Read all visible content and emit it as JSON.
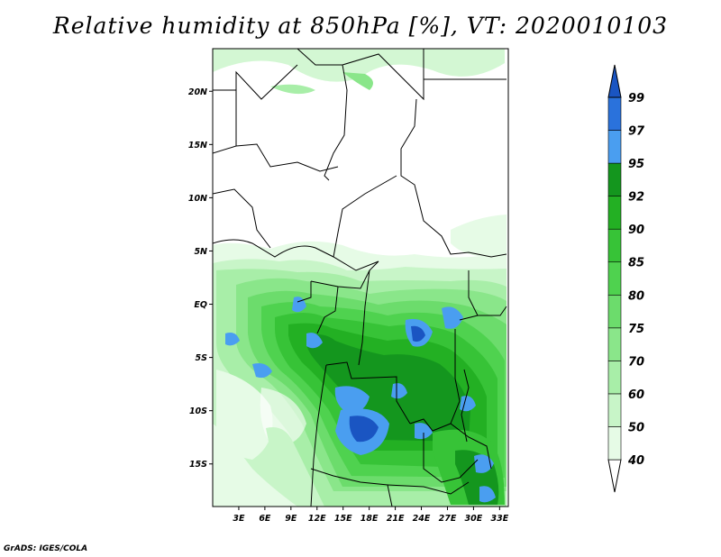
{
  "title": "Relative humidity at 850hPa [%], VT: 2020010103",
  "credit": "GrADS: IGES/COLA",
  "map": {
    "lon_range": [
      0,
      34
    ],
    "lat_range": [
      -19,
      24
    ],
    "lat_ticks": [
      {
        "value": 20,
        "label": "20N"
      },
      {
        "value": 15,
        "label": "15N"
      },
      {
        "value": 10,
        "label": "10N"
      },
      {
        "value": 5,
        "label": "5N"
      },
      {
        "value": 0,
        "label": "EQ"
      },
      {
        "value": -5,
        "label": "5S"
      },
      {
        "value": -10,
        "label": "10S"
      },
      {
        "value": -15,
        "label": "15S"
      }
    ],
    "lon_ticks": [
      {
        "value": 3,
        "label": "3E"
      },
      {
        "value": 6,
        "label": "6E"
      },
      {
        "value": 9,
        "label": "9E"
      },
      {
        "value": 12,
        "label": "12E"
      },
      {
        "value": 15,
        "label": "15E"
      },
      {
        "value": 18,
        "label": "18E"
      },
      {
        "value": 21,
        "label": "21E"
      },
      {
        "value": 24,
        "label": "24E"
      },
      {
        "value": 27,
        "label": "27E"
      },
      {
        "value": 30,
        "label": "30E"
      },
      {
        "value": 33,
        "label": "33E"
      }
    ]
  },
  "colorbar": {
    "levels": [
      {
        "label": "40",
        "color": "#e6fbe6"
      },
      {
        "label": "50",
        "color": "#c8f5c8"
      },
      {
        "label": "60",
        "color": "#a8eea8"
      },
      {
        "label": "70",
        "color": "#8ae68a"
      },
      {
        "label": "75",
        "color": "#6cdc6c"
      },
      {
        "label": "80",
        "color": "#4fd24f"
      },
      {
        "label": "85",
        "color": "#37c337"
      },
      {
        "label": "90",
        "color": "#23b023"
      },
      {
        "label": "92",
        "color": "#14961e"
      },
      {
        "label": "95",
        "color": "#4a9ef0"
      },
      {
        "label": "97",
        "color": "#2a72dc"
      },
      {
        "label": "99",
        "color": "#1a55c2"
      }
    ],
    "top_color": "#1a55c2",
    "bottom_color": "#ffffff"
  }
}
